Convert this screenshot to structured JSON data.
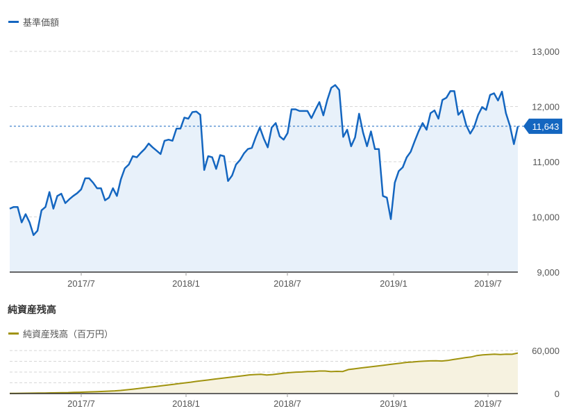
{
  "chart_data": [
    {
      "type": "line",
      "legend": "基準価額",
      "x_ticks": [
        "2017/7",
        "2018/1",
        "2018/7",
        "2019/1",
        "2019/7"
      ],
      "y_ticks": [
        "13,000",
        "12,000",
        "11,000",
        "10,000",
        "9,000"
      ],
      "ylim": [
        9000,
        13000
      ],
      "current_value": 11643,
      "current_label": "11,643",
      "series": [
        {
          "name": "基準価額",
          "values": [
            10150,
            10180,
            10180,
            9900,
            10050,
            9900,
            9670,
            9750,
            10120,
            10180,
            10450,
            10150,
            10380,
            10420,
            10250,
            10320,
            10380,
            10430,
            10500,
            10700,
            10700,
            10620,
            10520,
            10520,
            10300,
            10350,
            10520,
            10380,
            10680,
            10880,
            10950,
            11100,
            11080,
            11160,
            11230,
            11330,
            11260,
            11200,
            11140,
            11380,
            11400,
            11380,
            11600,
            11600,
            11800,
            11780,
            11900,
            11910,
            11850,
            10850,
            11100,
            11080,
            10870,
            11120,
            11100,
            10650,
            10750,
            10950,
            11030,
            11150,
            11230,
            11250,
            11450,
            11620,
            11420,
            11260,
            11620,
            11700,
            11460,
            11400,
            11520,
            11950,
            11950,
            11920,
            11920,
            11920,
            11790,
            11940,
            12080,
            11840,
            12120,
            12340,
            12390,
            12300,
            11450,
            11580,
            11280,
            11440,
            11870,
            11530,
            11280,
            11550,
            11230,
            11230,
            10380,
            10350,
            9960,
            10620,
            10830,
            10900,
            11080,
            11180,
            11370,
            11550,
            11700,
            11580,
            11880,
            11930,
            11780,
            12120,
            12160,
            12280,
            12280,
            11850,
            11930,
            11660,
            11510,
            11630,
            11850,
            11990,
            11940,
            12210,
            12240,
            12110,
            12270,
            11880,
            11650,
            11320,
            11643
          ]
        }
      ]
    },
    {
      "type": "area",
      "title": "純資産残高",
      "legend": "純資産残高（百万円）",
      "x_ticks": [
        "2017/7",
        "2018/1",
        "2018/7",
        "2019/1",
        "2019/7"
      ],
      "y_ticks": [
        "60,000",
        "0"
      ],
      "ylim": [
        0,
        60000
      ],
      "series": [
        {
          "name": "純資産残高（百万円）",
          "values": [
            200,
            250,
            350,
            450,
            550,
            650,
            800,
            950,
            1100,
            1250,
            1400,
            1600,
            1850,
            2100,
            2400,
            2700,
            3000,
            3400,
            3800,
            4400,
            5200,
            6100,
            7000,
            8000,
            8900,
            9800,
            10800,
            11900,
            12900,
            13900,
            14900,
            15900,
            17000,
            18000,
            19000,
            20000,
            21000,
            22000,
            23000,
            24000,
            25000,
            26000,
            26500,
            26800,
            25800,
            26500,
            27500,
            28500,
            29200,
            29900,
            30100,
            30800,
            30800,
            31500,
            31500,
            30600,
            31000,
            30800,
            33500,
            34500,
            35500,
            36500,
            37500,
            38500,
            39500,
            40500,
            41500,
            42500,
            43500,
            44000,
            44800,
            45200,
            45600,
            45800,
            45400,
            46200,
            47500,
            48800,
            50000,
            51000,
            53000,
            54000,
            54500,
            55000,
            54500,
            55000,
            54800,
            56500
          ]
        }
      ]
    }
  ],
  "colors": {
    "nav_line": "#1466c0",
    "nav_fill": "#e8f1fa",
    "aum_line": "#a0930e",
    "aum_fill": "#f6f2e0",
    "badge": "#1466c0"
  }
}
